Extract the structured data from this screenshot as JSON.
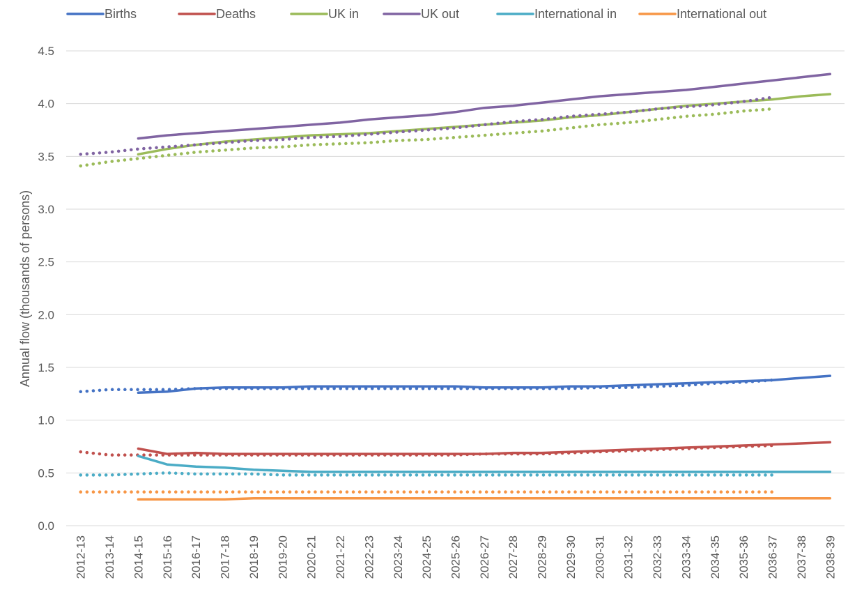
{
  "chart_data": {
    "type": "line",
    "title": "",
    "xlabel": "",
    "ylabel": "Annual flow (thousands of persons)",
    "ylim": [
      0,
      4.5
    ],
    "yticks": [
      "0.0",
      "0.5",
      "1.0",
      "1.5",
      "2.0",
      "2.5",
      "3.0",
      "3.5",
      "4.0",
      "4.5"
    ],
    "grid": "horizontal",
    "legend_position": "top",
    "categories": [
      "2012-13",
      "2013-14",
      "2014-15",
      "2015-16",
      "2016-17",
      "2017-18",
      "2018-19",
      "2019-20",
      "2020-21",
      "2021-22",
      "2022-23",
      "2023-24",
      "2024-25",
      "2025-26",
      "2026-27",
      "2027-28",
      "2028-29",
      "2029-30",
      "2030-31",
      "2031-32",
      "2032-33",
      "2033-34",
      "2034-35",
      "2035-36",
      "2036-37",
      "2037-38",
      "2038-39"
    ],
    "series": [
      {
        "name": "Births",
        "color": "#4472C4",
        "solid": [
          null,
          null,
          1.26,
          1.27,
          1.3,
          1.31,
          1.31,
          1.31,
          1.32,
          1.32,
          1.32,
          1.32,
          1.32,
          1.32,
          1.31,
          1.31,
          1.31,
          1.32,
          1.32,
          1.33,
          1.34,
          1.35,
          1.36,
          1.37,
          1.38,
          1.4,
          1.42
        ],
        "dotted": [
          1.27,
          1.29,
          1.29,
          1.29,
          1.3,
          1.3,
          1.3,
          1.3,
          1.3,
          1.3,
          1.3,
          1.3,
          1.3,
          1.3,
          1.3,
          1.3,
          1.3,
          1.3,
          1.31,
          1.31,
          1.32,
          1.33,
          1.35,
          1.36,
          1.38,
          null,
          null
        ]
      },
      {
        "name": "Deaths",
        "color": "#C0504D",
        "solid": [
          null,
          null,
          0.73,
          0.68,
          0.69,
          0.68,
          0.68,
          0.68,
          0.68,
          0.68,
          0.68,
          0.68,
          0.68,
          0.68,
          0.68,
          0.69,
          0.69,
          0.7,
          0.71,
          0.72,
          0.73,
          0.74,
          0.75,
          0.76,
          0.77,
          0.78,
          0.79
        ],
        "dotted": [
          0.7,
          0.67,
          0.67,
          0.67,
          0.67,
          0.67,
          0.67,
          0.67,
          0.67,
          0.67,
          0.67,
          0.67,
          0.67,
          0.67,
          0.68,
          0.68,
          0.68,
          0.69,
          0.7,
          0.71,
          0.72,
          0.73,
          0.74,
          0.75,
          0.76,
          null,
          null
        ]
      },
      {
        "name": "UK in",
        "color": "#9BBB59",
        "solid": [
          null,
          null,
          3.52,
          3.57,
          3.61,
          3.64,
          3.66,
          3.68,
          3.7,
          3.71,
          3.72,
          3.74,
          3.76,
          3.78,
          3.8,
          3.82,
          3.84,
          3.87,
          3.89,
          3.92,
          3.95,
          3.98,
          4.0,
          4.02,
          4.04,
          4.07,
          4.09
        ],
        "dotted": [
          3.41,
          3.45,
          3.48,
          3.51,
          3.54,
          3.56,
          3.58,
          3.59,
          3.61,
          3.62,
          3.63,
          3.65,
          3.66,
          3.68,
          3.7,
          3.72,
          3.74,
          3.77,
          3.8,
          3.82,
          3.85,
          3.88,
          3.9,
          3.93,
          3.95,
          null,
          null
        ]
      },
      {
        "name": "UK out",
        "color": "#8064A2",
        "solid": [
          null,
          null,
          3.67,
          3.7,
          3.72,
          3.74,
          3.76,
          3.78,
          3.8,
          3.82,
          3.85,
          3.87,
          3.89,
          3.92,
          3.96,
          3.98,
          4.01,
          4.04,
          4.07,
          4.09,
          4.11,
          4.13,
          4.16,
          4.19,
          4.22,
          4.25,
          4.28
        ],
        "dotted": [
          3.52,
          3.54,
          3.57,
          3.59,
          3.61,
          3.63,
          3.65,
          3.66,
          3.68,
          3.69,
          3.71,
          3.73,
          3.75,
          3.77,
          3.8,
          3.83,
          3.85,
          3.88,
          3.9,
          3.92,
          3.95,
          3.97,
          3.99,
          4.02,
          4.06,
          null,
          null
        ]
      },
      {
        "name": "International in",
        "color": "#4BACC6",
        "solid": [
          null,
          null,
          0.66,
          0.58,
          0.56,
          0.55,
          0.53,
          0.52,
          0.51,
          0.51,
          0.51,
          0.51,
          0.51,
          0.51,
          0.51,
          0.51,
          0.51,
          0.51,
          0.51,
          0.51,
          0.51,
          0.51,
          0.51,
          0.51,
          0.51,
          0.51,
          0.51
        ],
        "dotted": [
          0.48,
          0.48,
          0.49,
          0.5,
          0.49,
          0.49,
          0.49,
          0.48,
          0.48,
          0.48,
          0.48,
          0.48,
          0.48,
          0.48,
          0.48,
          0.48,
          0.48,
          0.48,
          0.48,
          0.48,
          0.48,
          0.48,
          0.48,
          0.48,
          0.48,
          null,
          null
        ]
      },
      {
        "name": "International out",
        "color": "#F79646",
        "solid": [
          null,
          null,
          0.25,
          0.25,
          0.25,
          0.25,
          0.26,
          0.26,
          0.26,
          0.26,
          0.26,
          0.26,
          0.26,
          0.26,
          0.26,
          0.26,
          0.26,
          0.26,
          0.26,
          0.26,
          0.26,
          0.26,
          0.26,
          0.26,
          0.26,
          0.26,
          0.26
        ],
        "dotted": [
          0.32,
          0.32,
          0.32,
          0.32,
          0.32,
          0.32,
          0.32,
          0.32,
          0.32,
          0.32,
          0.32,
          0.32,
          0.32,
          0.32,
          0.32,
          0.32,
          0.32,
          0.32,
          0.32,
          0.32,
          0.32,
          0.32,
          0.32,
          0.32,
          0.32,
          null,
          null
        ]
      }
    ]
  }
}
